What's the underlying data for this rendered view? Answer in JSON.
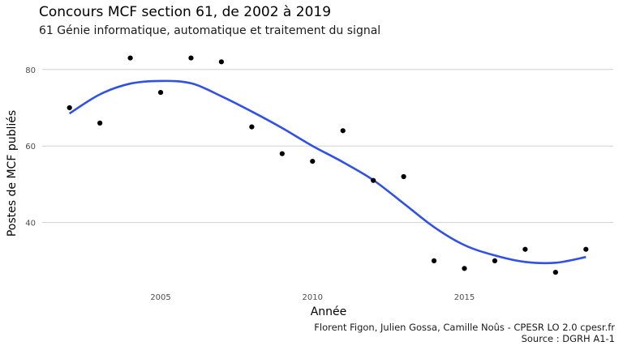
{
  "chart_data": {
    "type": "scatter",
    "title": "Concours MCF section 61, de 2002 à 2019",
    "subtitle": "61 Génie informatique, automatique et traitement du signal",
    "xlabel": "Année",
    "ylabel": "Postes de MCF publiés",
    "caption": [
      "Florent Figon, Julien Gossa, Camille Noûs - CPESR LO 2.0 cpesr.fr",
      "Source : DGRH A1-1"
    ],
    "x_ticks": [
      2005,
      2010,
      2015
    ],
    "y_ticks": [
      40,
      60,
      80
    ],
    "xlim": [
      2001.1,
      2019.9
    ],
    "ylim": [
      24.9,
      86.3
    ],
    "grid": true,
    "legend": "none",
    "point_color": "#000000",
    "smooth_color": "#3050e8",
    "series": [
      {
        "x": [
          2002,
          2003,
          2004,
          2005,
          2006,
          2007,
          2008,
          2009,
          2010,
          2011,
          2012,
          2013,
          2014,
          2015,
          2016,
          2017,
          2018,
          2019
        ],
        "values": [
          70,
          66,
          83,
          74,
          83,
          82,
          65,
          58,
          56,
          64,
          51,
          52,
          30,
          28,
          30,
          33,
          27,
          33
        ]
      }
    ],
    "smooth": {
      "x": [
        2002,
        2003,
        2004,
        2005,
        2006,
        2007,
        2008,
        2009,
        2010,
        2011,
        2012,
        2013,
        2014,
        2015,
        2016,
        2017,
        2018,
        2019
      ],
      "values": [
        68.5,
        73.5,
        76.3,
        77.0,
        76.4,
        73.0,
        69.0,
        64.7,
        60.0,
        55.8,
        51.1,
        45.0,
        38.8,
        34.1,
        31.4,
        29.7,
        29.5,
        31.0
      ]
    }
  }
}
